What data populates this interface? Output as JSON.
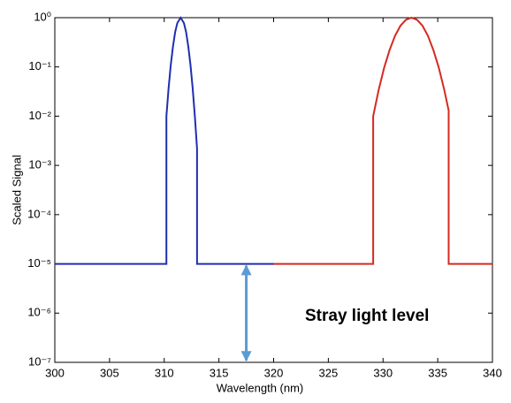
{
  "chart_data": {
    "type": "line",
    "log_y": true,
    "xlabel": "Wavelength (nm)",
    "ylabel": "Scaled Signal",
    "xlim": [
      300,
      340
    ],
    "xticks": [
      300,
      305,
      310,
      315,
      320,
      325,
      330,
      335,
      340
    ],
    "ylim": [
      1e-07,
      1
    ],
    "yticks": [
      {
        "value": 1e-07,
        "label": "10⁻⁷"
      },
      {
        "value": 1e-06,
        "label": "10⁻⁶"
      },
      {
        "value": 1e-05,
        "label": "10⁻⁵"
      },
      {
        "value": 0.0001,
        "label": "10⁻⁴"
      },
      {
        "value": 0.001,
        "label": "10⁻³"
      },
      {
        "value": 0.01,
        "label": "10⁻²"
      },
      {
        "value": 0.1,
        "label": "10⁻¹"
      },
      {
        "value": 1,
        "label": "10⁰"
      }
    ],
    "series": [
      {
        "color": "#1f2fb0",
        "x": [
          300,
          310.2,
          310.2,
          310.4,
          310.6,
          310.8,
          311.0,
          311.2,
          311.5,
          311.8,
          312.0,
          312.2,
          312.4,
          312.6,
          312.8,
          313.0,
          313.0,
          320
        ],
        "values": [
          1e-05,
          1e-05,
          0.01,
          0.037,
          0.11,
          0.26,
          0.51,
          0.78,
          1,
          0.78,
          0.51,
          0.26,
          0.11,
          0.037,
          0.01,
          0.0022,
          1e-05,
          1e-05
        ]
      },
      {
        "color": "#d42a20",
        "x": [
          320,
          329.1,
          329.1,
          329.6,
          330.1,
          330.6,
          331.1,
          331.6,
          332.1,
          332.6,
          333.1,
          333.6,
          334.1,
          334.6,
          335.1,
          335.6,
          336.0,
          336.0,
          340
        ],
        "values": [
          1e-05,
          1e-05,
          0.01,
          0.034,
          0.096,
          0.22,
          0.43,
          0.69,
          0.91,
          1,
          0.91,
          0.69,
          0.43,
          0.22,
          0.096,
          0.034,
          0.013,
          1e-05,
          1e-05
        ]
      }
    ],
    "arrow": {
      "x": 317.5,
      "from": 1e-05,
      "to": 1e-07,
      "color": "#5b9bd5"
    },
    "annotation": "Stray light level"
  }
}
